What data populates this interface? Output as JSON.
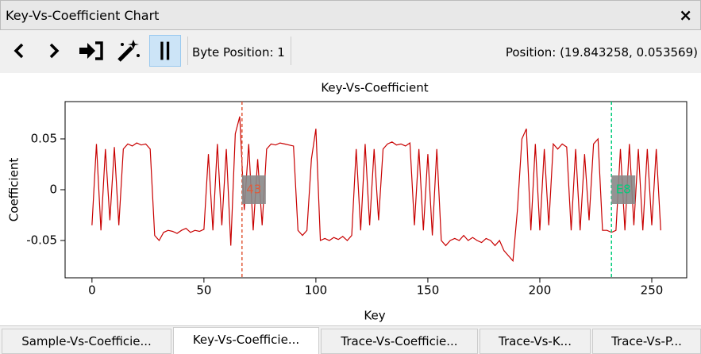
{
  "window": {
    "title": "Key-Vs-Coefficient Chart",
    "close": "×"
  },
  "toolbar": {
    "byte_position": "Byte Position: 1",
    "position": "Position: (19.843258, 0.053569)"
  },
  "chart_data": {
    "type": "line",
    "title": "Key-Vs-Coefficient",
    "x_label": "Key",
    "y_label": "Coefficient",
    "color": "#c80000",
    "x": [
      0,
      2,
      4,
      6,
      8,
      10,
      12,
      14,
      16,
      18,
      20,
      22,
      24,
      26,
      28,
      30,
      32,
      34,
      36,
      38,
      40,
      42,
      44,
      46,
      48,
      50,
      52,
      54,
      56,
      58,
      60,
      62,
      64,
      66,
      68,
      70,
      72,
      74,
      76,
      78,
      80,
      82,
      84,
      86,
      88,
      90,
      92,
      94,
      96,
      98,
      100,
      102,
      104,
      106,
      108,
      110,
      112,
      114,
      116,
      118,
      120,
      122,
      124,
      126,
      128,
      130,
      132,
      134,
      136,
      138,
      140,
      142,
      144,
      146,
      148,
      150,
      152,
      154,
      156,
      158,
      160,
      162,
      164,
      166,
      168,
      170,
      172,
      174,
      176,
      178,
      180,
      182,
      184,
      186,
      188,
      190,
      192,
      194,
      196,
      198,
      200,
      202,
      204,
      206,
      208,
      210,
      212,
      214,
      216,
      218,
      220,
      222,
      224,
      226,
      228,
      230,
      232,
      234,
      236,
      238,
      240,
      242,
      244,
      246,
      248,
      250,
      252,
      254
    ],
    "values": [
      -0.035,
      0.045,
      -0.04,
      0.04,
      -0.03,
      0.042,
      -0.035,
      0.04,
      0.045,
      0.043,
      0.046,
      0.044,
      0.045,
      0.04,
      -0.045,
      -0.05,
      -0.042,
      -0.04,
      -0.041,
      -0.043,
      -0.04,
      -0.038,
      -0.042,
      -0.04,
      -0.041,
      -0.039,
      0.035,
      -0.04,
      0.045,
      -0.035,
      0.04,
      -0.055,
      0.055,
      0.072,
      -0.02,
      0.045,
      -0.04,
      0.03,
      -0.035,
      0.04,
      0.045,
      0.044,
      0.046,
      0.045,
      0.044,
      0.043,
      -0.04,
      -0.045,
      -0.04,
      0.03,
      0.06,
      -0.05,
      -0.048,
      -0.05,
      -0.047,
      -0.049,
      -0.046,
      -0.05,
      -0.045,
      0.04,
      -0.04,
      0.045,
      -0.035,
      0.04,
      -0.03,
      0.04,
      0.045,
      0.047,
      0.044,
      0.045,
      0.043,
      0.046,
      -0.035,
      0.04,
      -0.04,
      0.035,
      -0.045,
      0.04,
      -0.05,
      -0.055,
      -0.05,
      -0.048,
      -0.05,
      -0.045,
      -0.05,
      -0.047,
      -0.05,
      -0.052,
      -0.048,
      -0.05,
      -0.055,
      -0.05,
      -0.06,
      -0.065,
      -0.07,
      -0.02,
      0.05,
      0.06,
      -0.04,
      0.045,
      -0.04,
      0.04,
      -0.035,
      0.045,
      0.04,
      0.045,
      0.042,
      -0.04,
      0.04,
      -0.04,
      0.035,
      -0.03,
      0.045,
      0.05,
      -0.04,
      -0.04,
      -0.042,
      -0.04,
      0.04,
      -0.04,
      0.045,
      -0.035,
      0.04,
      -0.04,
      0.04,
      -0.035,
      0.04,
      -0.04
    ],
    "xlim": [
      -12,
      265.6
    ],
    "xticks": [
      0,
      50,
      100,
      150,
      200,
      250
    ],
    "ylim": [
      -0.0867,
      0.0867
    ],
    "yticks": [
      -0.05,
      0,
      0.05
    ],
    "markers": [
      {
        "x": 67,
        "label": "43",
        "color": "#e05a3a"
      },
      {
        "x": 232,
        "label": "E8",
        "color": "#00cc7a"
      }
    ]
  },
  "tabs": [
    "Sample-Vs-Coefficie...",
    "Key-Vs-Coefficie...",
    "Trace-Vs-Coefficie...",
    "Trace-Vs-K...",
    "Trace-Vs-P..."
  ]
}
